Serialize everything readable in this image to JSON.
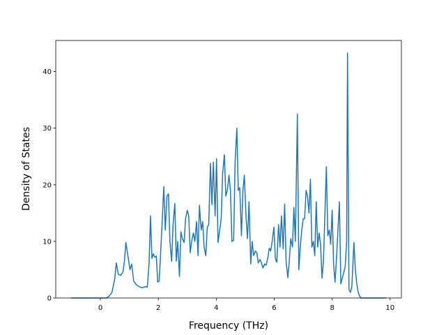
{
  "chart_data": {
    "type": "line",
    "xlabel": "Frequency (THz)",
    "ylabel": "Density of States",
    "xlim": [
      -1.54,
      10.39
    ],
    "ylim": [
      0,
      45.5
    ],
    "xticks": [
      0,
      2,
      4,
      6,
      8,
      10
    ],
    "yticks": [
      0,
      10,
      20,
      30,
      40
    ],
    "grid": false,
    "series": [
      {
        "color": "#1f77b4",
        "x": [
          -1,
          0.2,
          0.3,
          0.4,
          0.5,
          0.55,
          0.62,
          0.7,
          0.78,
          0.83,
          0.88,
          0.95,
          1.02,
          1.08,
          1.15,
          1.25,
          1.35,
          1.45,
          1.55,
          1.62,
          1.68,
          1.73,
          1.78,
          1.83,
          1.88,
          1.93,
          1.98,
          2.03,
          2.1,
          2.19,
          2.24,
          2.3,
          2.35,
          2.4,
          2.46,
          2.51,
          2.57,
          2.62,
          2.67,
          2.73,
          2.78,
          2.83,
          2.89,
          2.94,
          3.0,
          3.05,
          3.1,
          3.15,
          3.21,
          3.26,
          3.32,
          3.37,
          3.42,
          3.48,
          3.53,
          3.58,
          3.64,
          3.69,
          3.74,
          3.8,
          3.85,
          3.9,
          3.96,
          4.01,
          4.06,
          4.12,
          4.17,
          4.22,
          4.28,
          4.33,
          4.38,
          4.44,
          4.49,
          4.54,
          4.6,
          4.65,
          4.71,
          4.76,
          4.81,
          4.87,
          4.92,
          4.97,
          5.03,
          5.08,
          5.13,
          5.19,
          5.24,
          5.29,
          5.35,
          5.4,
          5.45,
          5.51,
          5.56,
          5.61,
          5.67,
          5.72,
          5.77,
          5.83,
          5.88,
          5.93,
          5.99,
          6.04,
          6.09,
          6.15,
          6.2,
          6.25,
          6.31,
          6.36,
          6.41,
          6.47,
          6.52,
          6.57,
          6.63,
          6.68,
          6.73,
          6.8,
          6.85,
          6.9,
          6.95,
          7.0,
          7.05,
          7.1,
          7.15,
          7.2,
          7.25,
          7.3,
          7.35,
          7.4,
          7.45,
          7.5,
          7.55,
          7.6,
          7.65,
          7.7,
          7.8,
          7.85,
          7.9,
          7.95,
          8.0,
          8.05,
          8.1,
          8.15,
          8.25,
          8.3,
          8.35,
          8.45,
          8.5,
          8.53,
          8.58,
          8.63,
          8.68,
          8.75,
          8.8,
          8.85,
          8.9,
          8.95,
          9.0,
          9.85
        ],
        "values": [
          0,
          0,
          0.3,
          1,
          3.5,
          6.2,
          4.2,
          4,
          4.6,
          6.5,
          9.8,
          7.5,
          5,
          6,
          3,
          2.3,
          2,
          1.8,
          2,
          1.9,
          6,
          14.5,
          7,
          7.8,
          7.2,
          7.4,
          2.8,
          3,
          10,
          19.7,
          12,
          18,
          18.4,
          10,
          6.5,
          13,
          16.7,
          6.5,
          10,
          3.8,
          11.7,
          10.5,
          9.8,
          14,
          15.5,
          14.5,
          8,
          10,
          11.5,
          10,
          13.5,
          7.5,
          16.4,
          12,
          13.5,
          9,
          7.5,
          12.5,
          13,
          23.8,
          16.5,
          24,
          14.5,
          24.6,
          9.8,
          12,
          14,
          22,
          25.3,
          18,
          19,
          21.7,
          19,
          10,
          10.2,
          24,
          30,
          19,
          19.5,
          11,
          19,
          21.7,
          14,
          10.5,
          17,
          6,
          10,
          7.5,
          8.3,
          8,
          6.2,
          6.8,
          6.2,
          5.3,
          6,
          5.8,
          6.8,
          8.8,
          8.3,
          10,
          12.5,
          7,
          6.3,
          13,
          9,
          14.5,
          8.7,
          16.6,
          6.5,
          3.6,
          6.5,
          10.5,
          9,
          16,
          10,
          32.5,
          5,
          9,
          12,
          14,
          14,
          19,
          18,
          15,
          21,
          9,
          10,
          7.5,
          17,
          9,
          11.5,
          9.5,
          3.5,
          6.5,
          23.2,
          11,
          12,
          9.5,
          15.5,
          6,
          2.8,
          7,
          17,
          2.5,
          3.5,
          5.5,
          10,
          43.3,
          1.5,
          1,
          2,
          9.8,
          5,
          2.5,
          1,
          0.3,
          0,
          0
        ]
      }
    ]
  }
}
